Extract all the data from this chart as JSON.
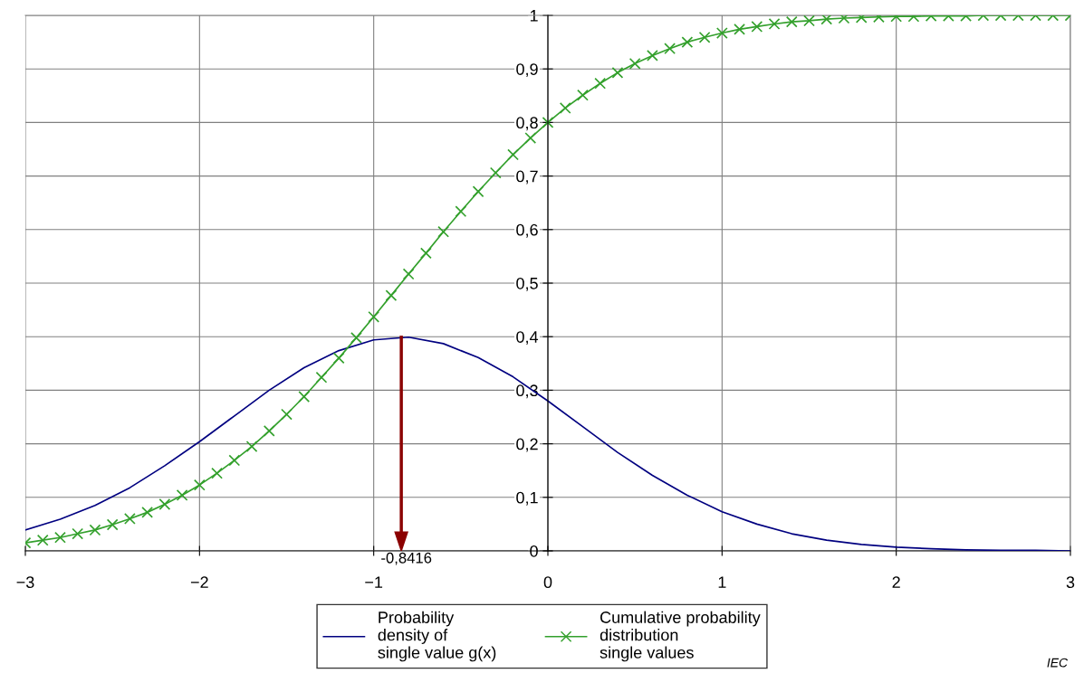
{
  "chart_data": {
    "type": "line",
    "x": [
      -3,
      -2.9,
      -2.8,
      -2.7,
      -2.6,
      -2.5,
      -2.4,
      -2.3,
      -2.2,
      -2.1,
      -2,
      -1.9,
      -1.8,
      -1.7,
      -1.6,
      -1.5,
      -1.4,
      -1.3,
      -1.2,
      -1.1,
      -1,
      -0.9,
      -0.8,
      -0.7,
      -0.6,
      -0.5,
      -0.4,
      -0.3,
      -0.2,
      -0.1,
      0,
      0.1,
      0.2,
      0.3,
      0.4,
      0.5,
      0.6,
      0.7,
      0.8,
      0.9,
      1,
      1.1,
      1.2,
      1.3,
      1.4,
      1.5,
      1.6,
      1.7,
      1.8,
      1.9,
      2,
      2.1,
      2.2,
      2.3,
      2.4,
      2.5,
      2.6,
      2.7,
      2.8,
      2.9,
      3
    ],
    "series": [
      {
        "name": "Probability\ndensity of\nsingle value g(x)",
        "color": "#000080",
        "marker": "none",
        "x": [
          -3,
          -2.8,
          -2.6,
          -2.4,
          -2.2,
          -2,
          -1.8,
          -1.6,
          -1.4,
          -1.2,
          -1,
          -0.8,
          -0.6,
          -0.4,
          -0.2,
          0,
          0.2,
          0.4,
          0.6,
          0.8,
          1,
          1.2,
          1.4,
          1.6,
          1.8,
          2,
          2.2,
          2.4,
          2.6,
          2.8,
          3
        ],
        "values": [
          0.039,
          0.059,
          0.085,
          0.118,
          0.159,
          0.204,
          0.252,
          0.3,
          0.342,
          0.374,
          0.394,
          0.399,
          0.387,
          0.361,
          0.325,
          0.28,
          0.232,
          0.184,
          0.141,
          0.104,
          0.073,
          0.05,
          0.032,
          0.02,
          0.012,
          0.007,
          0.004,
          0.002,
          0.001,
          0.001,
          0.0
        ]
      },
      {
        "name": "Cumulative probability\ndistribution\nsingle values",
        "color": "#33a02c",
        "marker": "cross",
        "values": [
          0.015,
          0.02,
          0.025,
          0.032,
          0.039,
          0.049,
          0.06,
          0.072,
          0.087,
          0.104,
          0.123,
          0.145,
          0.169,
          0.195,
          0.224,
          0.255,
          0.288,
          0.324,
          0.36,
          0.398,
          0.437,
          0.477,
          0.517,
          0.556,
          0.596,
          0.634,
          0.671,
          0.706,
          0.74,
          0.771,
          0.8,
          0.827,
          0.851,
          0.873,
          0.893,
          0.91,
          0.925,
          0.938,
          0.95,
          0.959,
          0.967,
          0.974,
          0.979,
          0.984,
          0.988,
          0.99,
          0.993,
          0.995,
          0.996,
          0.997,
          0.998,
          0.998,
          0.999,
          0.999,
          0.999,
          1.0,
          1.0,
          1.0,
          1.0,
          1.0,
          1.0
        ]
      }
    ],
    "xlim": [
      -3,
      3
    ],
    "ylim": [
      0,
      1
    ],
    "xticks": [
      {
        "value": -3,
        "label": "−3"
      },
      {
        "value": -2,
        "label": "−2"
      },
      {
        "value": -1,
        "label": "−1"
      },
      0,
      1,
      2,
      3
    ],
    "yticks": [
      0,
      {
        "value": 0.1,
        "label": "0,1"
      },
      {
        "value": 0.2,
        "label": "0,2"
      },
      {
        "value": 0.3,
        "label": "0,3"
      },
      {
        "value": 0.4,
        "label": "0,4"
      },
      {
        "value": 0.5,
        "label": "0,5"
      },
      {
        "value": 0.6,
        "label": "0,6"
      },
      {
        "value": 0.7,
        "label": "0,7"
      },
      {
        "value": 0.8,
        "label": "0,8"
      },
      {
        "value": 0.9,
        "label": "0,9"
      },
      1
    ],
    "grid": true,
    "legend": "bottom",
    "ref_lines": [
      {
        "axis": "x",
        "value": -0.8416,
        "label": "-0,8416",
        "color": "#8b0000"
      }
    ],
    "annotations": [
      "IEC"
    ]
  }
}
